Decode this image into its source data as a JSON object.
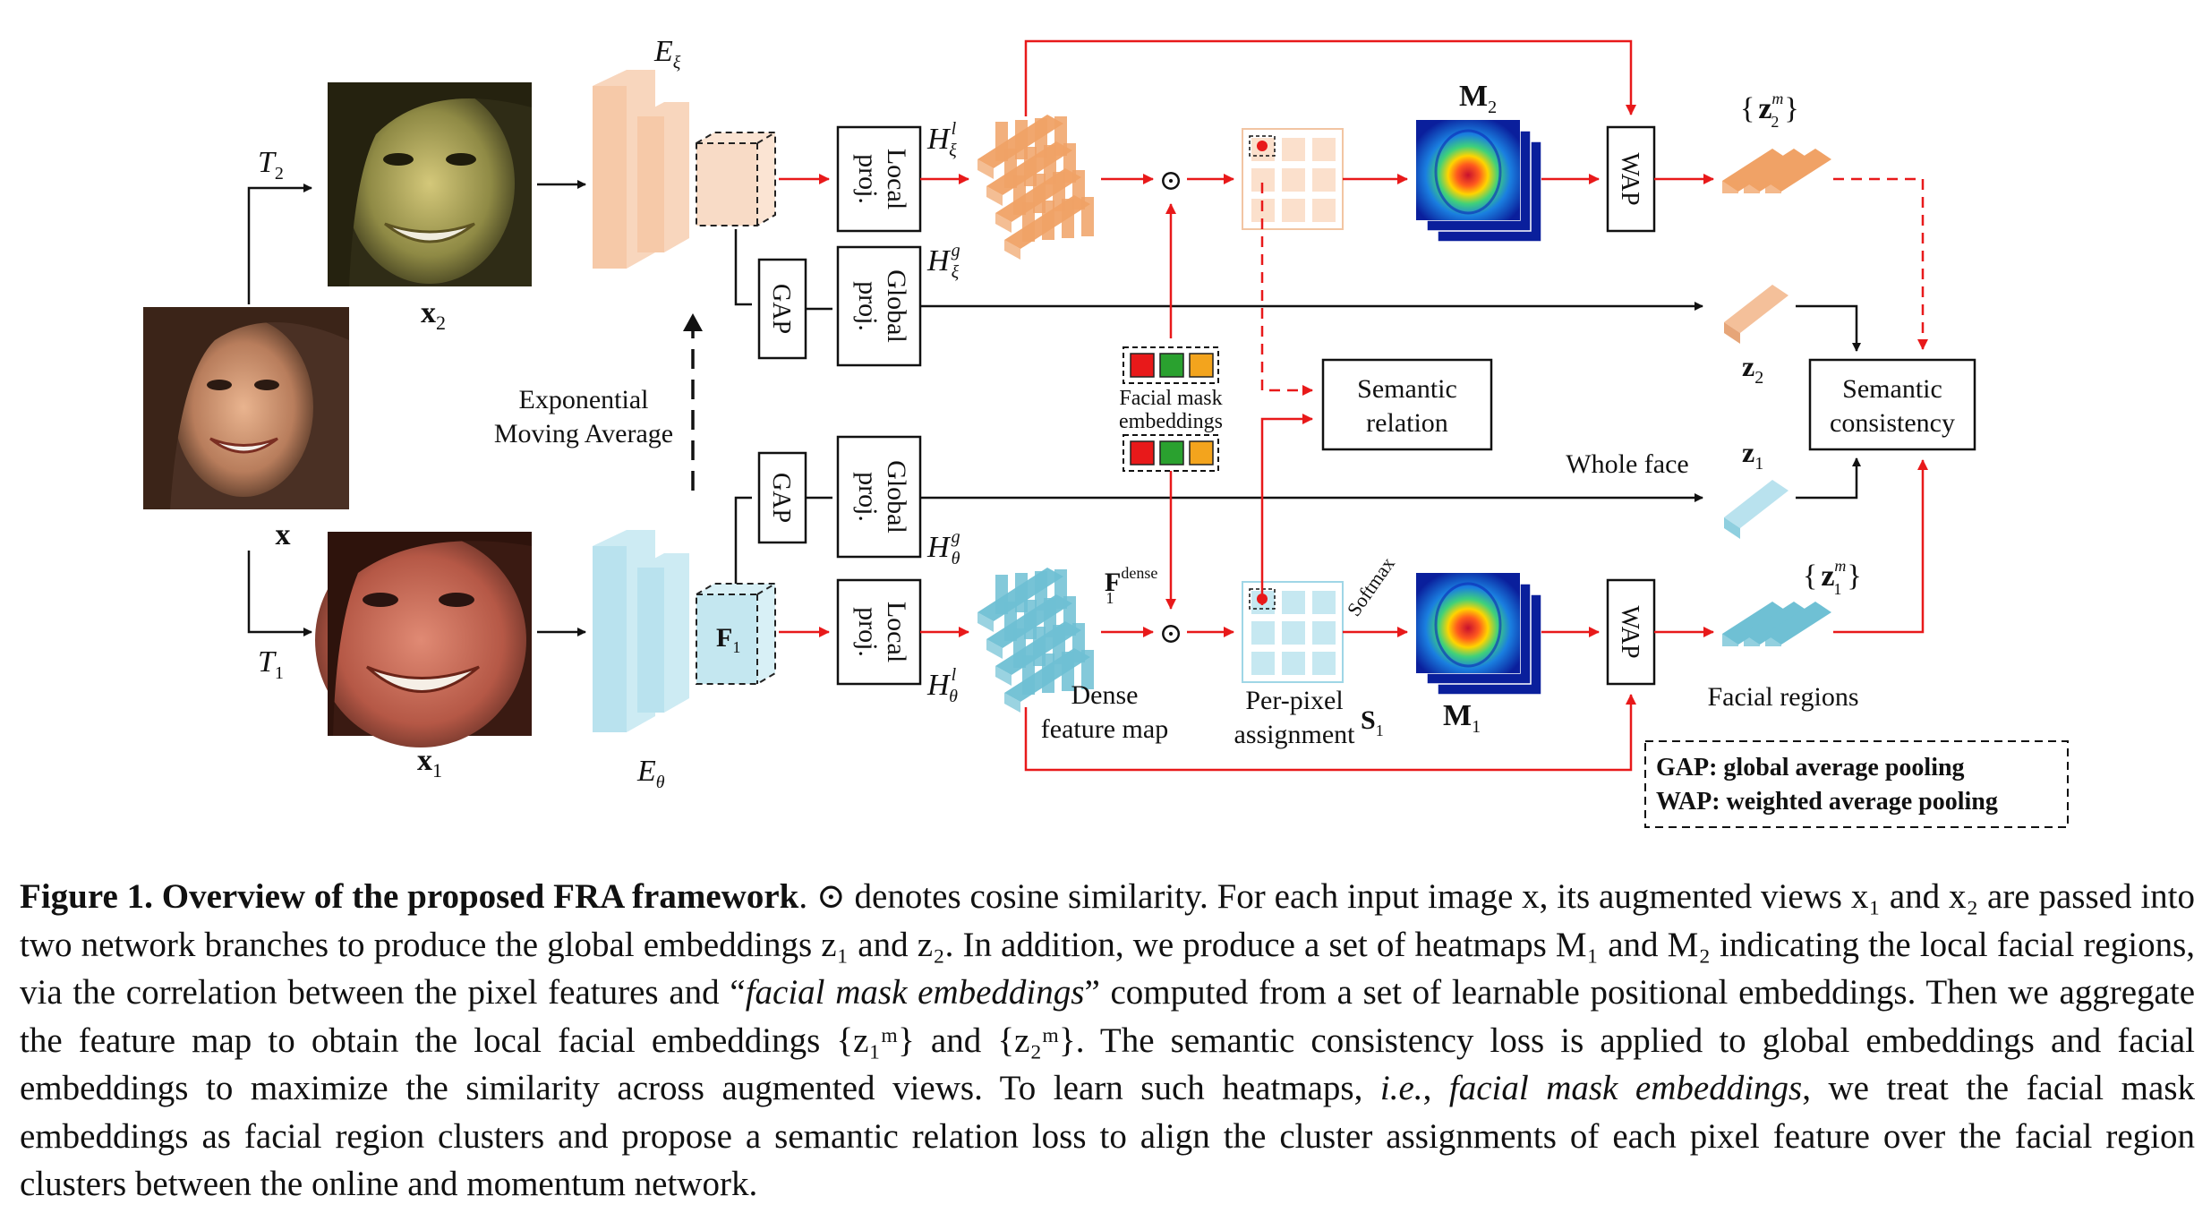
{
  "diagram": {
    "inputs": {
      "x": "x",
      "x1": "x",
      "x1_sub": "1",
      "x2": "x",
      "x2_sub": "2",
      "t1": "T",
      "t1_sub": "1",
      "t2": "T",
      "t2_sub": "2"
    },
    "encoders": {
      "momentum": "E",
      "momentum_sub": "ξ",
      "online": "E",
      "online_sub": "θ",
      "f1": "F",
      "f1_sub": "1",
      "ema_line1": "Exponential",
      "ema_line2": "Moving Average"
    },
    "blocks": {
      "gap": "GAP",
      "global_proj_1": "Global",
      "global_proj_2": "proj.",
      "local_proj_1": "Local",
      "local_proj_2": "proj.",
      "wap": "WAP"
    },
    "symbols": {
      "h_xi_l": "H",
      "h_xi_l_sup": "l",
      "h_xi_l_sub": "ξ",
      "h_xi_g": "H",
      "h_xi_g_sup": "g",
      "h_xi_g_sub": "ξ",
      "h_theta_g": "H",
      "h_theta_g_sup": "g",
      "h_theta_g_sub": "θ",
      "h_theta_l": "H",
      "h_theta_l_sup": "l",
      "h_theta_l_sub": "θ",
      "f1_dense": "F",
      "f1_dense_sup": "dense",
      "f1_dense_sub": "1",
      "odot": "⊙",
      "m1": "M",
      "m1_sub": "1",
      "m2": "M",
      "m2_sub": "2",
      "s1": "S",
      "s1_sub": "1",
      "z1": "z",
      "z1_sub": "1",
      "z2": "z",
      "z2_sub": "2",
      "z1m_open": "{",
      "z1m": "z",
      "z1m_sup": "m",
      "z1m_sub": "1",
      "z1m_close": "}",
      "z2m_open": "{",
      "z2m": "z",
      "z2m_sup": "m",
      "z2m_sub": "2",
      "z2m_close": "}"
    },
    "labels": {
      "facial_mask_1": "Facial mask",
      "facial_mask_2": "embeddings",
      "dense_1": "Dense",
      "dense_2": "feature map",
      "per_pixel_1": "Per-pixel",
      "per_pixel_2": "assignment",
      "softmax": "Softmax",
      "semantic_relation_1": "Semantic",
      "semantic_relation_2": "relation",
      "semantic_consistency_1": "Semantic",
      "semantic_consistency_2": "consistency",
      "whole_face": "Whole face",
      "facial_regions": "Facial regions"
    },
    "legend": {
      "gap_def": "GAP: global average pooling",
      "wap_def": "WAP: weighted average pooling"
    },
    "colors": {
      "momentum_branch": "#f6c9a8",
      "momentum_feature": "#f0a266",
      "online_branch": "#b9e2ee",
      "online_feature": "#6fc0d4",
      "arrow_red": "#e8191a",
      "mask_red": "#e8191a",
      "mask_green": "#2aa12f",
      "mask_orange": "#f3a41d"
    }
  },
  "caption": {
    "label": "Figure 1.",
    "title": "Overview of the proposed FRA framework",
    "seg1": ". ⊙ denotes cosine similarity. For each input image x, its augmented views x₁ and x₂ are passed into two network branches to produce the global embeddings z₁ and z₂. In addition, we produce a set of heatmaps M₁ and M₂ indicating the local facial regions, via the correlation between the pixel features and “",
    "italic1": "facial mask embeddings",
    "seg2": "” computed from a set of learnable positional embeddings. Then we aggregate the feature map to obtain the local facial embeddings {z₁ᵐ} and {z₂ᵐ}. The semantic consistency loss is applied to global embeddings and facial embeddings to maximize the similarity across augmented views. To learn such heatmaps, ",
    "italic2": "i.e.",
    "seg3": ", ",
    "italic3": "facial mask embeddings",
    "seg4": ", we treat the facial mask embeddings as facial region clusters and propose a semantic relation loss to align the cluster assignments of each pixel feature over the facial region clusters between the online and momentum network."
  }
}
